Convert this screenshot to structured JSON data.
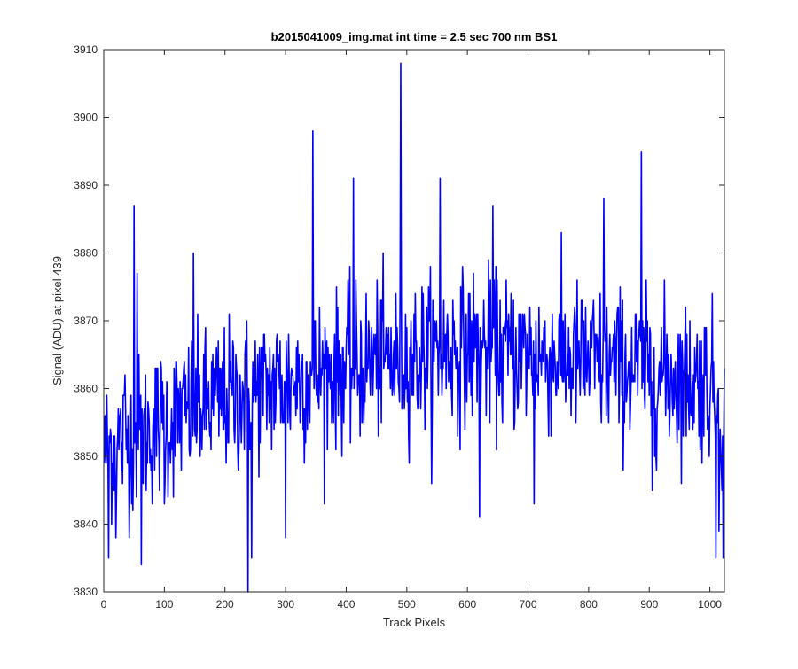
{
  "chart_data": {
    "type": "line",
    "title": "b2015041009_img.mat int time = 2.5 sec  700 nm BS1",
    "xlabel": "Track Pixels",
    "ylabel": "Signal (ADU) at pixel 439",
    "xlim": [
      0,
      1024
    ],
    "ylim": [
      3830,
      3910
    ],
    "xticks": [
      0,
      100,
      200,
      300,
      400,
      500,
      600,
      700,
      800,
      900,
      1000
    ],
    "yticks": [
      3830,
      3840,
      3850,
      3860,
      3870,
      3880,
      3890,
      3900,
      3910
    ],
    "grid": false,
    "series": [
      {
        "color": "#0000ff",
        "x_start": 1,
        "x_end": 1024,
        "noise_amplitude": 7,
        "baseline_points": [
          [
            1,
            3851
          ],
          [
            150,
            3857
          ],
          [
            300,
            3861
          ],
          [
            450,
            3864
          ],
          [
            600,
            3866
          ],
          [
            800,
            3864
          ],
          [
            1000,
            3861
          ],
          [
            1024,
            3856
          ]
        ],
        "notable_points": [
          [
            3,
            3851
          ],
          [
            8,
            3835
          ],
          [
            20,
            3838
          ],
          [
            35,
            3862
          ],
          [
            50,
            3887
          ],
          [
            55,
            3877
          ],
          [
            62,
            3834
          ],
          [
            100,
            3843
          ],
          [
            148,
            3880
          ],
          [
            238,
            3830
          ],
          [
            244,
            3835
          ],
          [
            300,
            3838
          ],
          [
            345,
            3898
          ],
          [
            412,
            3891
          ],
          [
            490,
            3908
          ],
          [
            555,
            3891
          ],
          [
            620,
            3841
          ],
          [
            642,
            3887
          ],
          [
            710,
            3843
          ],
          [
            825,
            3888
          ],
          [
            887,
            3895
          ],
          [
            905,
            3845
          ],
          [
            1010,
            3835
          ],
          [
            1015,
            3839
          ],
          [
            1022,
            3835
          ]
        ]
      }
    ]
  }
}
